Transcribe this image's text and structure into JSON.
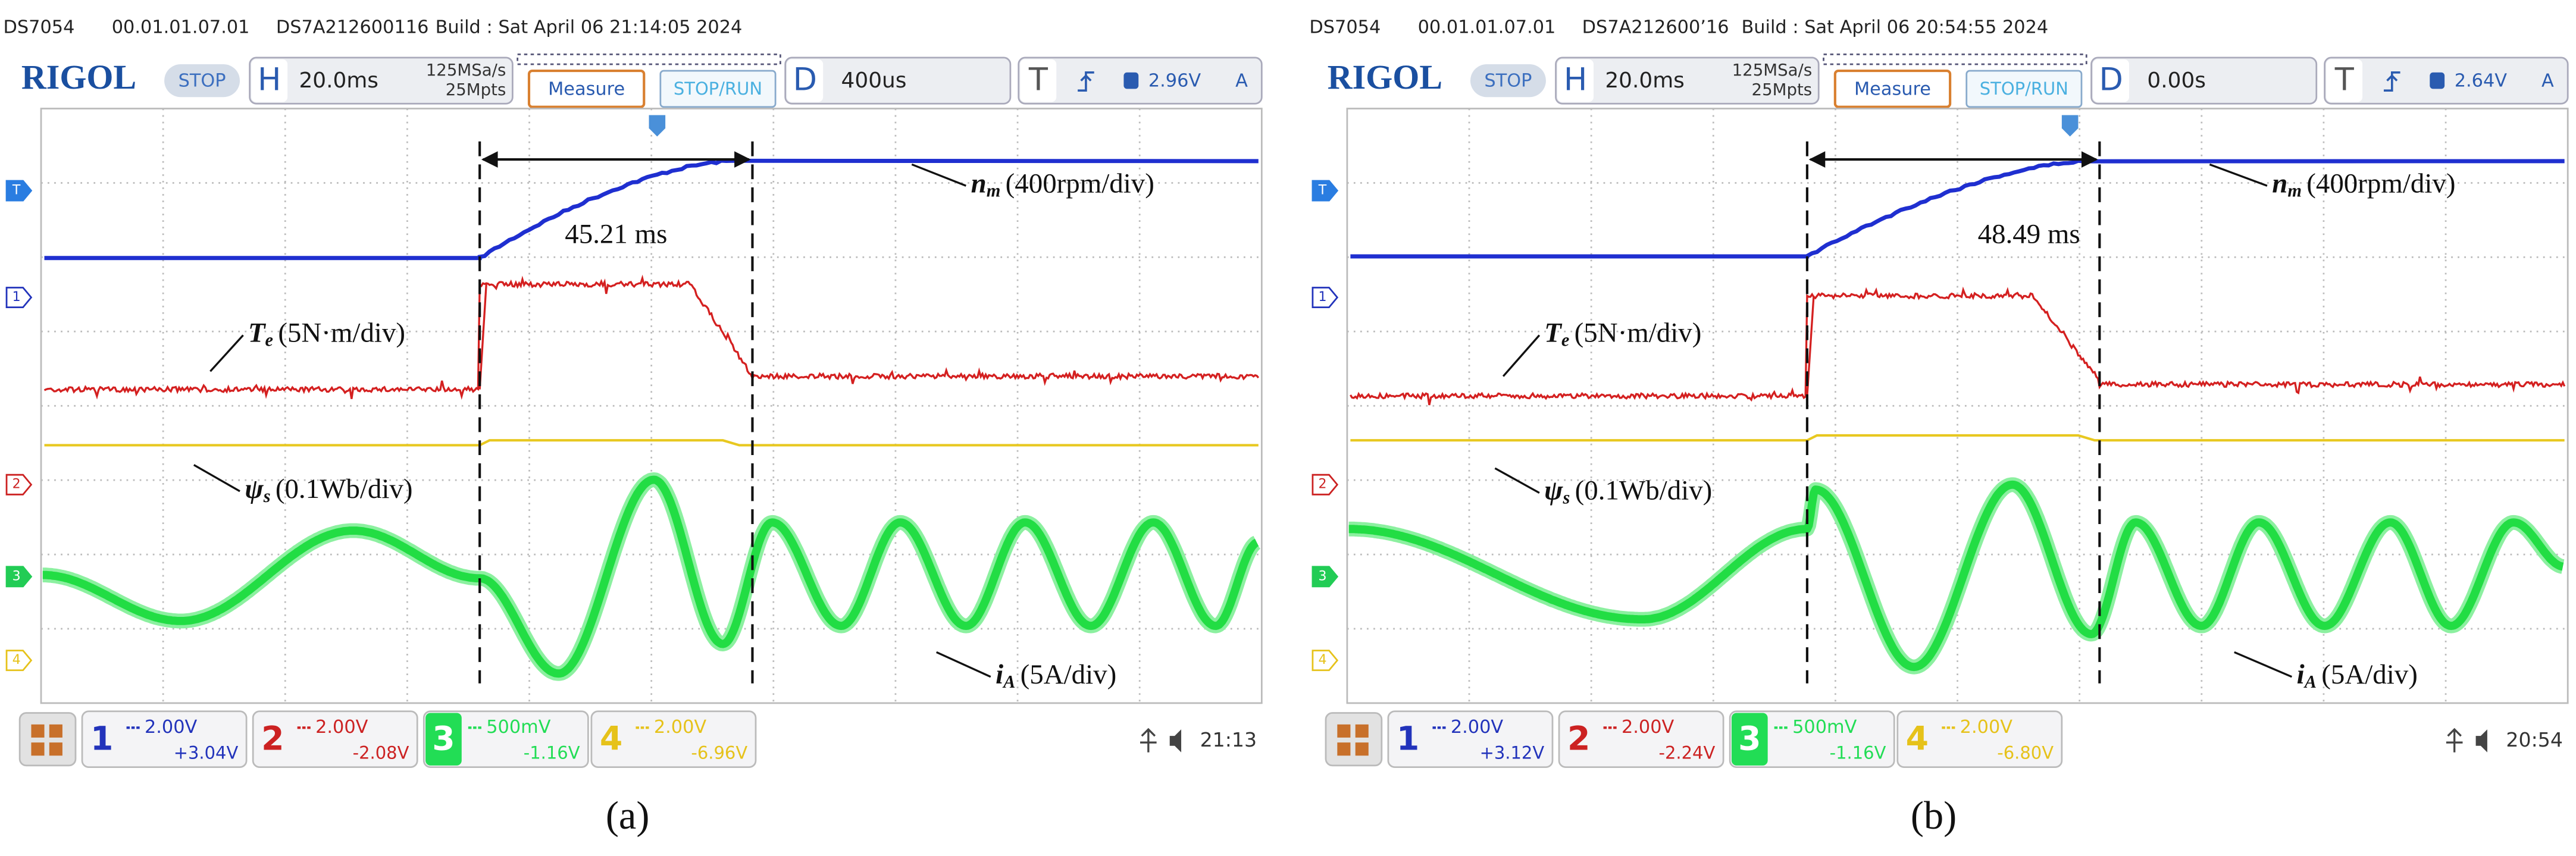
{
  "panels": [
    {
      "header": {
        "model": "DS7054",
        "firmware": "00.01.01.07.01",
        "serial": "DS7A212600116",
        "build": "Build : Sat April 06 21:14:05 2024"
      },
      "toolbar": {
        "logo": "RIGOL",
        "status": "STOP",
        "h_label": "H",
        "timebase": "20.0ms",
        "sample_rate": "125MSa/s",
        "memory": "25Mpts",
        "measure": "Measure",
        "stop_run": "STOP/RUN",
        "d_label": "D",
        "delay": "400us",
        "t_label": "T",
        "trigger_level": "2.96V",
        "trigger_channel": "A"
      },
      "markers": [
        "T",
        "1",
        "2",
        "3",
        "4"
      ],
      "interval": "45.21 ms",
      "annotations": [
        {
          "symbol": "n",
          "subscript": "m",
          "scale": "(400rpm/div)"
        },
        {
          "symbol": "T",
          "subscript": "e",
          "scale": "(5N·m/div)"
        },
        {
          "symbol": "ψ",
          "subscript": "s",
          "scale": "(0.1Wb/div)"
        },
        {
          "symbol": "i",
          "subscript": "A",
          "scale": "(5A/div)"
        }
      ],
      "channels": [
        {
          "number": "1",
          "scale": "2.00V",
          "offset": "+3.04V"
        },
        {
          "number": "2",
          "scale": "2.00V",
          "offset": "-2.08V"
        },
        {
          "number": "3",
          "scale": "500mV",
          "offset": "-1.16V"
        },
        {
          "number": "4",
          "scale": "2.00V",
          "offset": "-6.96V"
        }
      ],
      "clock": "21:13",
      "caption": "(a)"
    },
    {
      "header": {
        "model": "DS7054",
        "firmware": "00.01.01.07.01",
        "serial": "DS7A212600’16",
        "build": "Build : Sat April 06 20:54:55 2024"
      },
      "toolbar": {
        "logo": "RIGOL",
        "status": "STOP",
        "h_label": "H",
        "timebase": "20.0ms",
        "sample_rate": "125MSa/s",
        "memory": "25Mpts",
        "measure": "Measure",
        "stop_run": "STOP/RUN",
        "d_label": "D",
        "delay": "0.00s",
        "t_label": "T",
        "trigger_level": "2.64V",
        "trigger_channel": "A"
      },
      "markers": [
        "T",
        "1",
        "2",
        "3",
        "4"
      ],
      "interval": "48.49 ms",
      "annotations": [
        {
          "symbol": "n",
          "subscript": "m",
          "scale": "(400rpm/div)"
        },
        {
          "symbol": "T",
          "subscript": "e",
          "scale": "(5N·m/div)"
        },
        {
          "symbol": "ψ",
          "subscript": "s",
          "scale": "(0.1Wb/div)"
        },
        {
          "symbol": "i",
          "subscript": "A",
          "scale": "(5A/div)"
        }
      ],
      "channels": [
        {
          "number": "1",
          "scale": "2.00V",
          "offset": "+3.12V"
        },
        {
          "number": "2",
          "scale": "2.00V",
          "offset": "-2.24V"
        },
        {
          "number": "3",
          "scale": "500mV",
          "offset": "-1.16V"
        },
        {
          "number": "4",
          "scale": "2.00V",
          "offset": "-6.80V"
        }
      ],
      "clock": "20:54",
      "caption": "(b)"
    }
  ]
}
